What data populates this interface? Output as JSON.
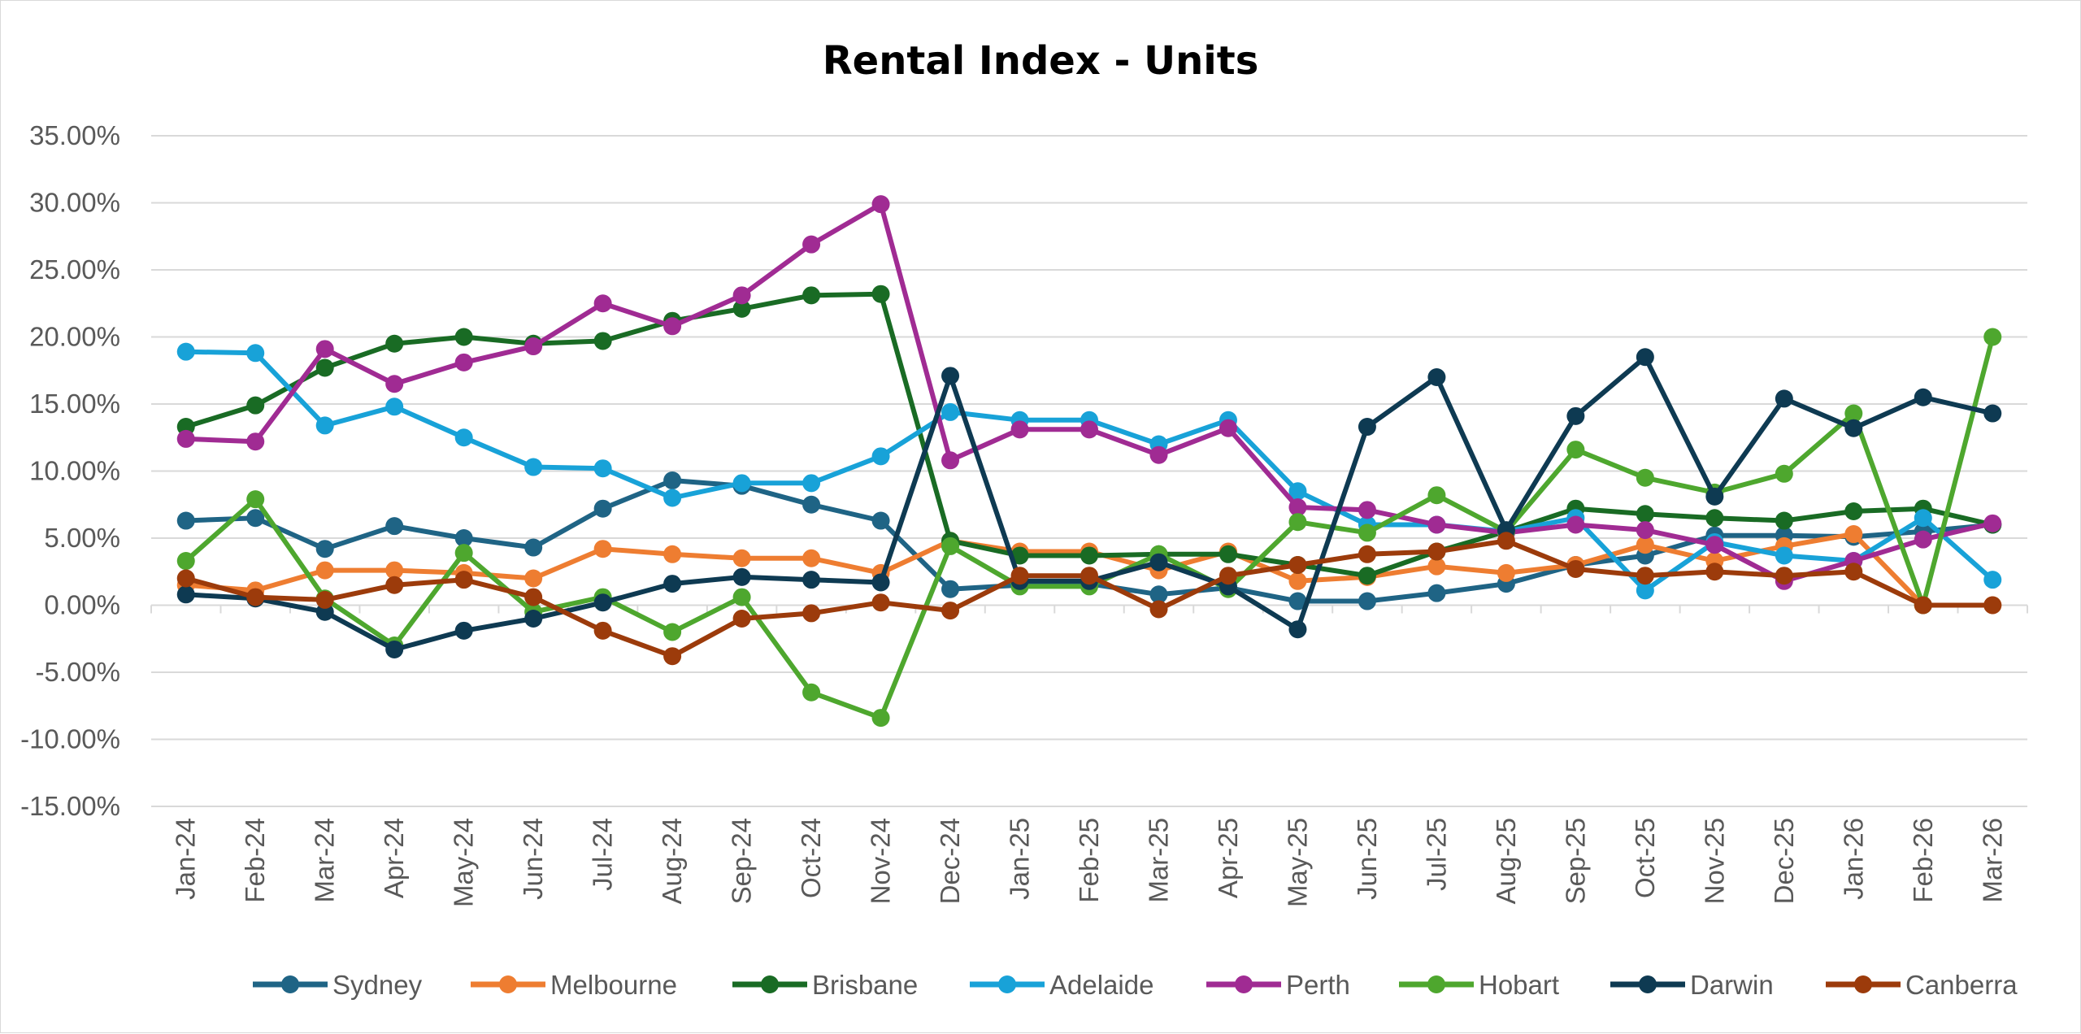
{
  "chart_data": {
    "type": "line",
    "title": "Rental Index - Units",
    "xlabel": "",
    "ylabel": "",
    "ylim": [
      -15,
      35
    ],
    "ytick_step": 5,
    "y_format": "percent_2dp",
    "grid": true,
    "legend_position": "bottom",
    "categories": [
      "Jan-24",
      "Feb-24",
      "Mar-24",
      "Apr-24",
      "May-24",
      "Jun-24",
      "Jul-24",
      "Aug-24",
      "Sep-24",
      "Oct-24",
      "Nov-24",
      "Dec-24",
      "Jan-25",
      "Feb-25",
      "Mar-25",
      "Apr-25",
      "May-25",
      "Jun-25",
      "Jul-25",
      "Aug-25",
      "Sep-25",
      "Oct-25",
      "Nov-25",
      "Dec-25",
      "Jan-26",
      "Feb-26",
      "Mar-26"
    ],
    "y_ticks": [
      "35.00%",
      "30.00%",
      "25.00%",
      "20.00%",
      "15.00%",
      "10.00%",
      "5.00%",
      "0.00%",
      "-5.00%",
      "-10.00%",
      "-15.00%"
    ],
    "series": [
      {
        "name": "Sydney",
        "color": "#1f6485",
        "values": [
          6.3,
          6.5,
          4.2,
          5.9,
          5.0,
          4.3,
          7.2,
          9.3,
          8.9,
          7.5,
          6.3,
          1.2,
          1.5,
          1.6,
          0.8,
          1.3,
          0.3,
          0.3,
          0.9,
          1.6,
          3.0,
          3.7,
          5.2,
          5.2,
          5.1,
          5.5,
          6.0
        ]
      },
      {
        "name": "Melbourne",
        "color": "#ee7d31",
        "values": [
          1.5,
          1.1,
          2.6,
          2.6,
          2.4,
          2.0,
          4.2,
          3.8,
          3.5,
          3.5,
          2.4,
          4.8,
          4.0,
          4.0,
          2.6,
          4.0,
          1.8,
          2.1,
          2.9,
          2.4,
          3.0,
          4.5,
          3.3,
          4.4,
          5.3,
          0.0,
          0.0
        ]
      },
      {
        "name": "Brisbane",
        "color": "#196b24",
        "values": [
          13.3,
          14.9,
          17.7,
          19.5,
          20.0,
          19.5,
          19.7,
          21.2,
          22.1,
          23.1,
          23.2,
          4.8,
          3.7,
          3.7,
          3.8,
          3.8,
          3.0,
          2.2,
          4.0,
          5.5,
          7.2,
          6.8,
          6.5,
          6.3,
          7.0,
          7.2,
          6.0
        ]
      },
      {
        "name": "Adelaide",
        "color": "#18a2d8",
        "values": [
          18.9,
          18.8,
          13.4,
          14.8,
          12.5,
          10.3,
          10.2,
          8.0,
          9.1,
          9.1,
          11.1,
          14.4,
          13.8,
          13.8,
          12.0,
          13.8,
          8.5,
          6.0,
          6.0,
          5.5,
          6.5,
          1.1,
          4.7,
          3.7,
          3.3,
          6.5,
          1.9
        ]
      },
      {
        "name": "Perth",
        "color": "#a02b93",
        "values": [
          12.4,
          12.2,
          19.1,
          16.5,
          18.1,
          19.3,
          22.5,
          20.8,
          23.1,
          26.9,
          29.9,
          10.8,
          13.1,
          13.1,
          11.2,
          13.2,
          7.3,
          7.1,
          6.0,
          5.4,
          6.0,
          5.6,
          4.5,
          1.8,
          3.3,
          4.9,
          6.1
        ]
      },
      {
        "name": "Hobart",
        "color": "#4ea72e",
        "values": [
          3.3,
          7.9,
          0.5,
          -3.0,
          3.9,
          -0.5,
          0.6,
          -2.0,
          0.6,
          -6.5,
          -8.4,
          4.4,
          1.4,
          1.4,
          3.8,
          1.2,
          6.2,
          5.4,
          8.2,
          5.5,
          11.6,
          9.5,
          8.4,
          9.8,
          14.3,
          0.0,
          20.0
        ]
      },
      {
        "name": "Darwin",
        "color": "#0e3a52",
        "values": [
          0.8,
          0.5,
          -0.5,
          -3.3,
          -1.9,
          -1.0,
          0.2,
          1.6,
          2.1,
          1.9,
          1.7,
          17.1,
          1.8,
          1.8,
          3.2,
          1.4,
          -1.8,
          13.3,
          17.0,
          5.6,
          14.1,
          18.5,
          8.1,
          15.4,
          13.2,
          15.5,
          14.3
        ]
      },
      {
        "name": "Canberra",
        "color": "#9c3b0b",
        "values": [
          2.0,
          0.6,
          0.4,
          1.5,
          1.9,
          0.6,
          -1.9,
          -3.8,
          -1.0,
          -0.6,
          0.2,
          -0.4,
          2.2,
          2.2,
          -0.3,
          2.2,
          3.0,
          3.8,
          4.0,
          4.8,
          2.7,
          2.2,
          2.5,
          2.2,
          2.5,
          0.0,
          0.0
        ]
      }
    ]
  }
}
